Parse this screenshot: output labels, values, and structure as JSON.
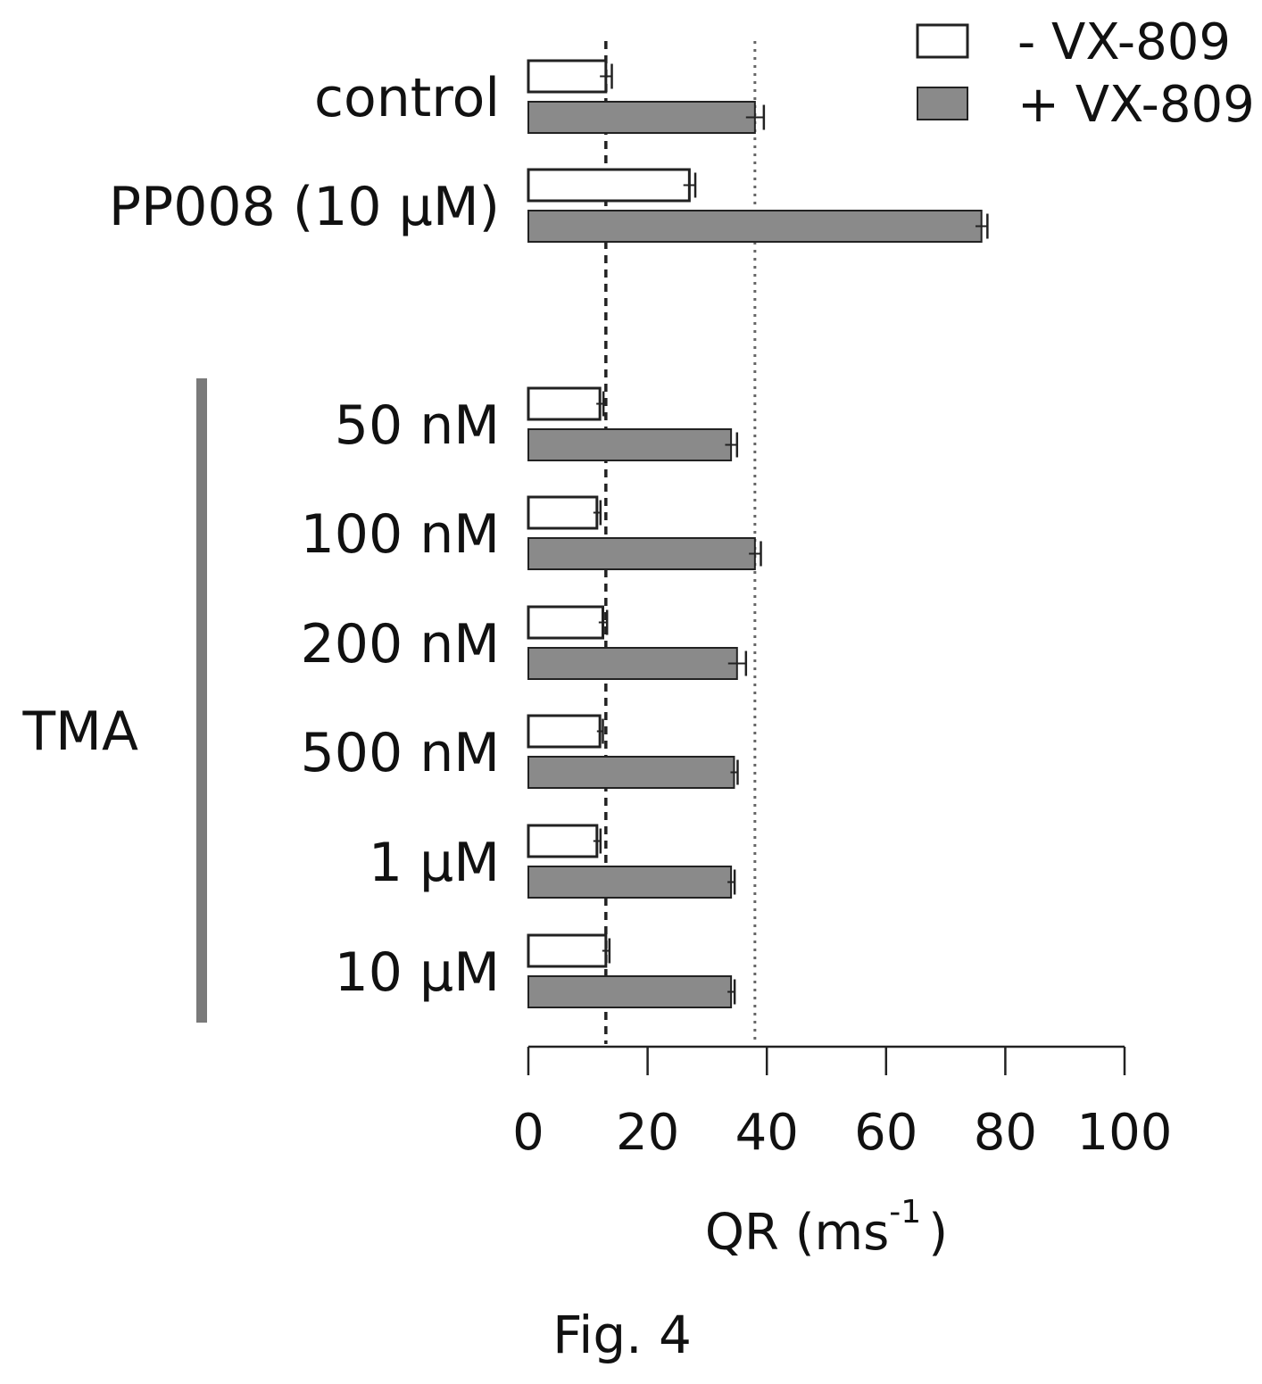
{
  "chart_data": {
    "type": "bar",
    "orientation": "horizontal",
    "categories": [
      "control",
      "PP008 (10 μM)",
      "50 nM",
      "100 nM",
      "200 nM",
      "500 nM",
      "1 μM",
      "10 μM"
    ],
    "group_label": {
      "text": "TMA",
      "applies_to": [
        "50 nM",
        "100 nM",
        "200 nM",
        "500 nM",
        "1 μM",
        "10 μM"
      ]
    },
    "series": [
      {
        "name": "- VX-809",
        "fill": "#ffffff",
        "values": [
          13,
          27,
          12,
          11.5,
          12.5,
          12,
          11.5,
          13
        ],
        "errors": [
          1,
          1,
          0.6,
          0.6,
          0.7,
          0.5,
          0.6,
          0.6
        ]
      },
      {
        "name": "+ VX-809",
        "fill": "#8a8a8a",
        "values": [
          38,
          76,
          34,
          38,
          35,
          34.5,
          34,
          34
        ],
        "errors": [
          1.5,
          1,
          1,
          1,
          1.5,
          0.6,
          0.6,
          0.6
        ]
      }
    ],
    "reference_lines": [
      {
        "x": 13,
        "style": "dashed"
      },
      {
        "x": 38,
        "style": "dotted"
      }
    ],
    "xlim": [
      0,
      100
    ],
    "xticks": [
      "0",
      "20",
      "40",
      "60",
      "80",
      "100"
    ],
    "xlabel": "QR (ms",
    "xlabel_sup": "-1",
    "xlabel_close": ")",
    "legend": "top-right",
    "grid": false
  },
  "caption": "Fig. 4",
  "colors": {
    "bar_outline": "#222222",
    "group_bar": "#7a7a7a"
  }
}
